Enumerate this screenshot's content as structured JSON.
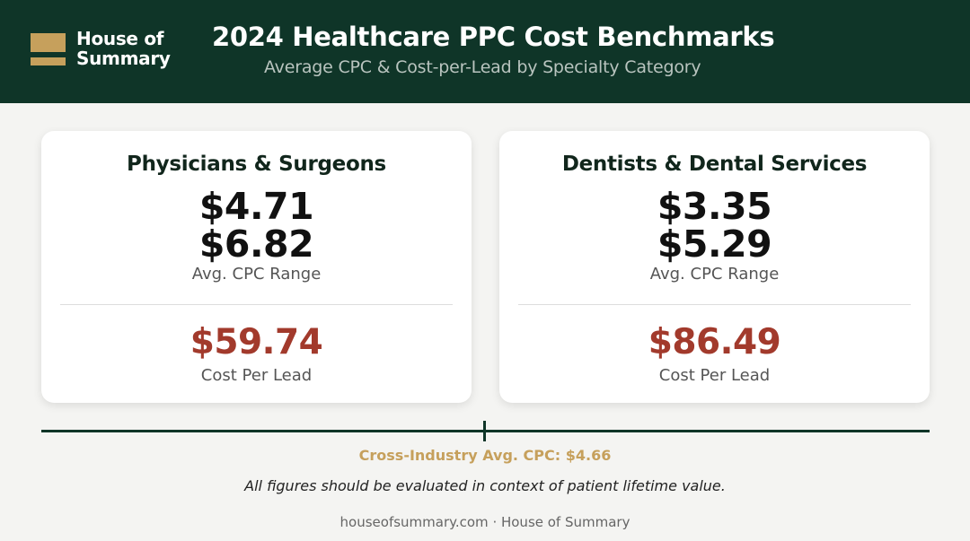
{
  "header": {
    "logo_line1": "House of",
    "logo_line2": "Summary",
    "title": "2024 Healthcare PPC Cost Benchmarks",
    "subtitle": "Average CPC & Cost-per-Lead by Specialty Category"
  },
  "cards": [
    {
      "title": "Physicians & Surgeons",
      "cpc_low": "$4.71",
      "cpc_high": "$6.82",
      "cpc_label": "Avg. CPC Range",
      "cpl": "$59.74",
      "cpl_label": "Cost Per Lead"
    },
    {
      "title": "Dentists & Dental Services",
      "cpc_low": "$3.35",
      "cpc_high": "$5.29",
      "cpc_label": "Avg. CPC Range",
      "cpl": "$86.49",
      "cpl_label": "Cost Per Lead"
    }
  ],
  "benchmark": {
    "cross_industry": "Cross-Industry Avg. CPC: $4.66",
    "note": "All figures should be evaluated in context of patient lifetime value."
  },
  "footer": {
    "text": "houseofsummary.com · House of Summary"
  },
  "colors": {
    "header_bg": "#0f3528",
    "accent_gold": "#c6a05c",
    "cost_red": "#a23a2c"
  }
}
